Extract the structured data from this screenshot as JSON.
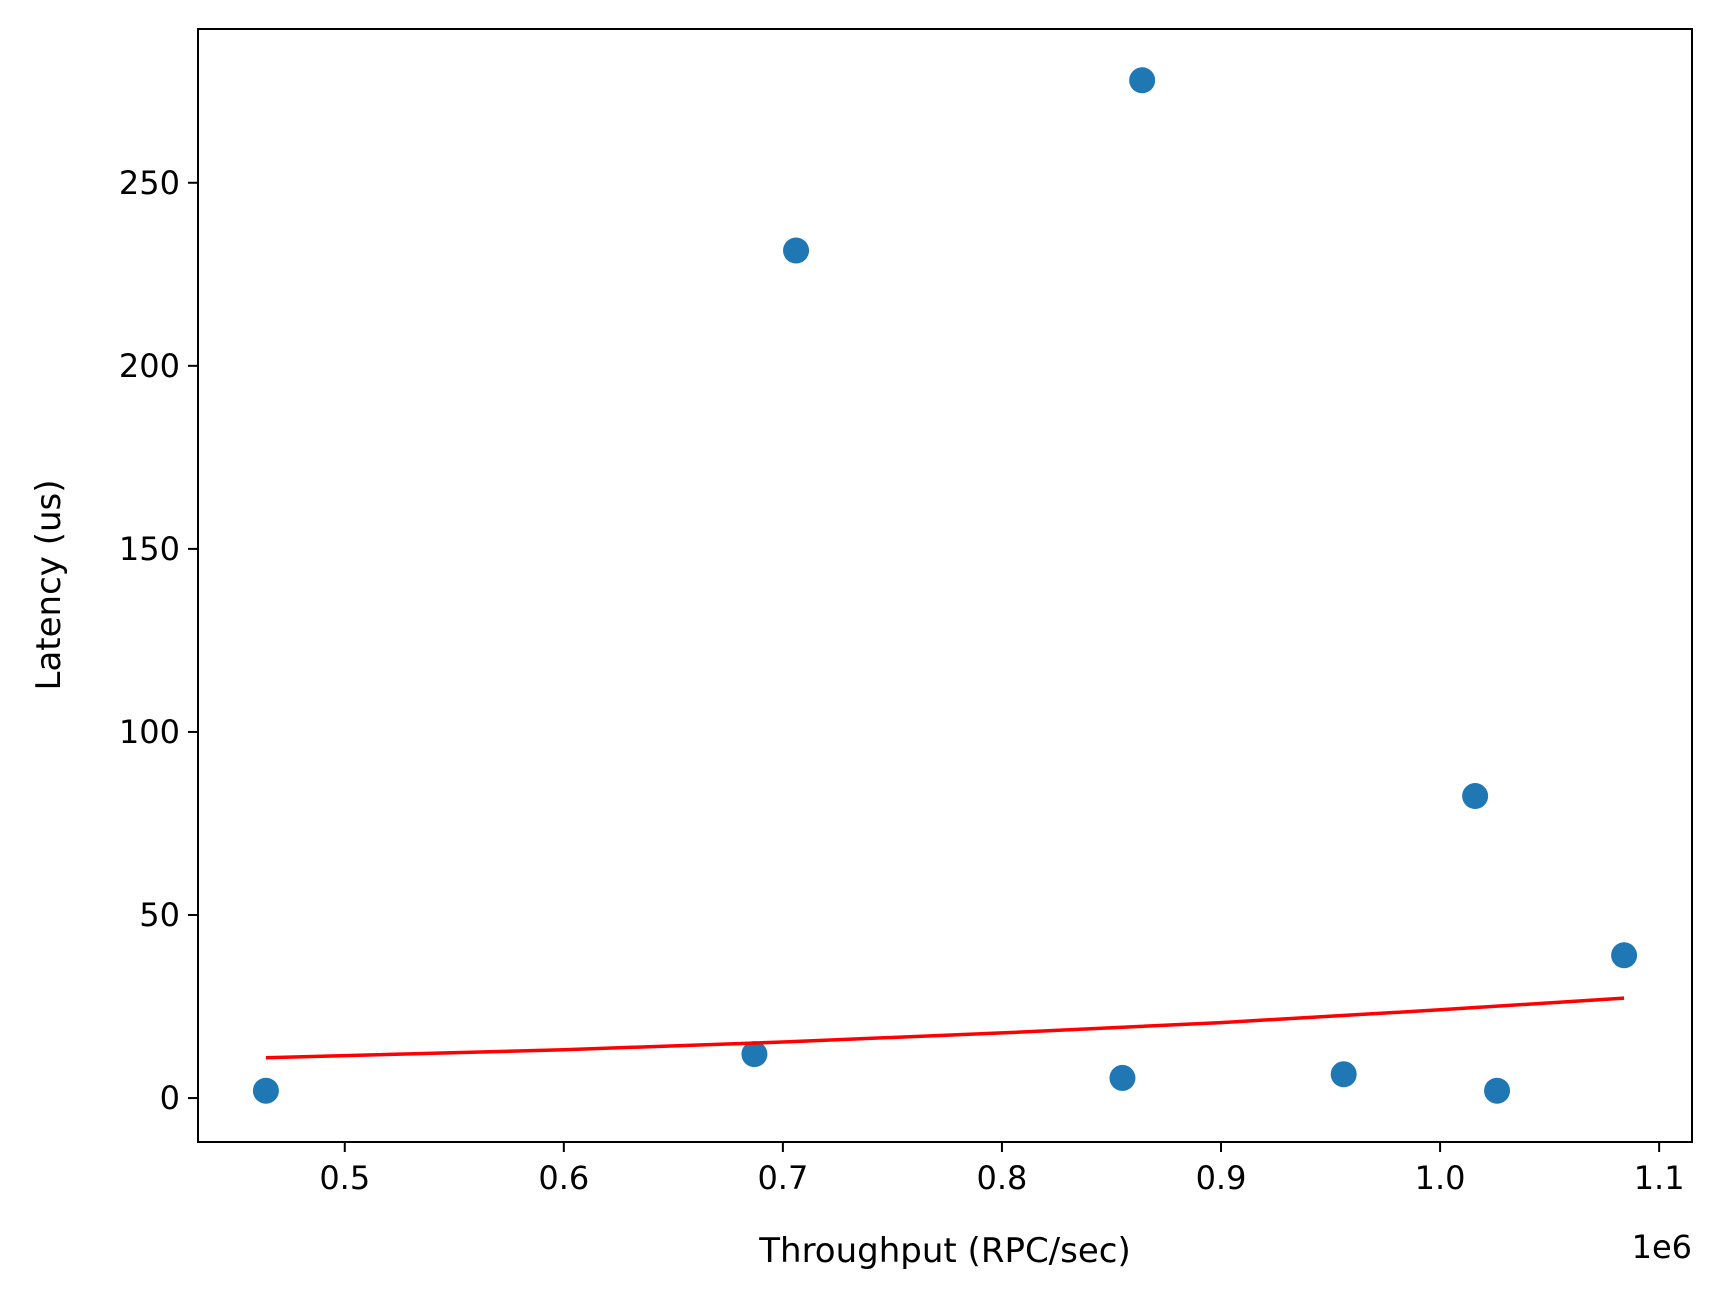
{
  "chart_data": {
    "type": "scatter",
    "title": "",
    "xlabel": "Throughput (RPC/sec)",
    "ylabel": "Latency (us)",
    "x_offset_label": "1e6",
    "xlim": [
      0.433,
      1.115
    ],
    "ylim": [
      -12,
      292
    ],
    "x_ticks": [
      0.5,
      0.6,
      0.7,
      0.8,
      0.9,
      1.0,
      1.1
    ],
    "x_tick_labels": [
      "0.5",
      "0.6",
      "0.7",
      "0.8",
      "0.9",
      "1.0",
      "1.1"
    ],
    "y_ticks": [
      0,
      50,
      100,
      150,
      200,
      250
    ],
    "y_tick_labels": [
      "0",
      "50",
      "100",
      "150",
      "200",
      "250"
    ],
    "grid": false,
    "series": [
      {
        "type": "scatter",
        "color": "#1f77b4",
        "x": [
          0.464,
          0.687,
          0.706,
          0.855,
          0.864,
          0.956,
          1.016,
          1.026,
          1.084
        ],
        "y": [
          2.0,
          12.0,
          231.5,
          5.5,
          278.0,
          6.5,
          82.5,
          2.0,
          39.0
        ]
      },
      {
        "type": "line",
        "color": "#ff0000",
        "x": [
          0.464,
          0.6,
          0.7,
          0.8,
          0.9,
          1.0,
          1.084
        ],
        "y": [
          11.0,
          13.2,
          15.3,
          17.8,
          20.6,
          24.1,
          27.3
        ]
      }
    ]
  }
}
